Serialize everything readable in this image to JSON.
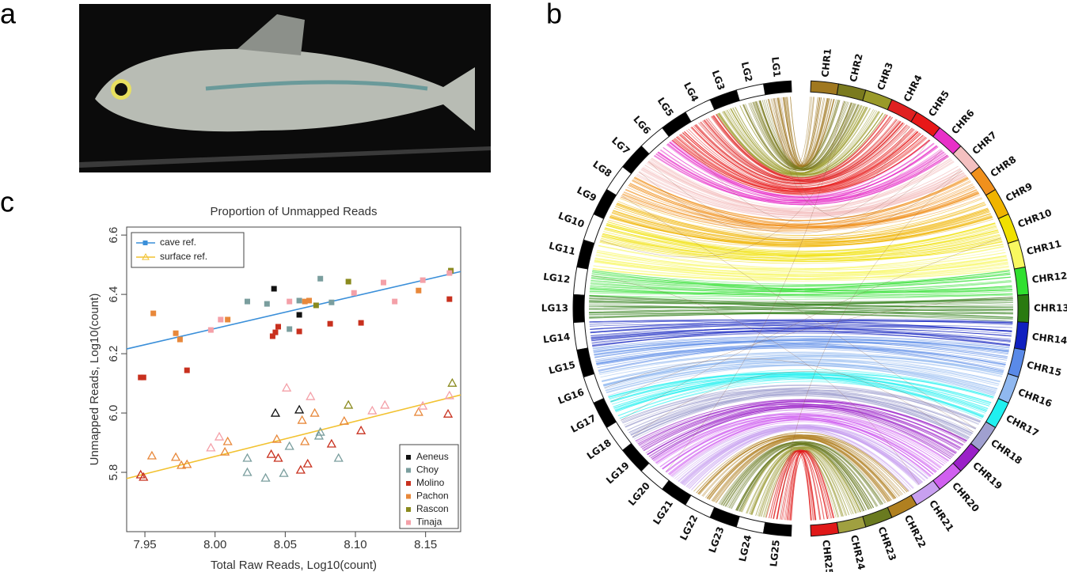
{
  "panel_labels": [
    "a",
    "b",
    "c"
  ],
  "chart_data": [
    {
      "type": "scatter",
      "title": "Proportion of Unmapped Reads",
      "x_label": "Total Raw Reads, Log10(count)",
      "y_label": "Unmapped Reads, Log10(count)",
      "xlim": [
        7.937,
        8.175
      ],
      "ylim": [
        5.6,
        6.627
      ],
      "xticks": [
        7.95,
        {
          "value": 8,
          "label": "8.00"
        },
        8.05,
        {
          "value": 8.1,
          "label": "8.10"
        },
        8.15
      ],
      "yticks": [
        5.8,
        {
          "value": 6,
          "label": "6.0"
        },
        6.2,
        6.4,
        6.6
      ],
      "references": [
        {
          "name": "cave ref.",
          "color": "#3a8fd9",
          "marker": "square",
          "x": [
            7.937,
            8.175
          ],
          "values": [
            6.216,
            6.477
          ]
        },
        {
          "name": "surface ref.",
          "color": "#f2c230",
          "marker": "triangle",
          "x": [
            7.937,
            8.175
          ],
          "values": [
            5.779,
            6.061
          ]
        }
      ],
      "populations": [
        {
          "name": "Aeneus",
          "color": "#111111",
          "cave_x": [
            8.042,
            8.06
          ],
          "cave_values": [
            6.419,
            6.331
          ],
          "surface_x": [
            8.043,
            8.06
          ],
          "surface_values": [
            6.0,
            6.011
          ]
        },
        {
          "name": "Choy",
          "color": "#7a9e9e",
          "cave_x": [
            8.023,
            8.037,
            8.06,
            8.075,
            8.053,
            8.083
          ],
          "cave_values": [
            6.376,
            6.368,
            6.379,
            6.453,
            6.283,
            6.373
          ],
          "surface_x": [
            8.023,
            8.023,
            8.036,
            8.049,
            8.053,
            8.075,
            8.074,
            8.088
          ],
          "surface_values": [
            5.848,
            5.8,
            5.781,
            5.797,
            5.888,
            5.936,
            5.923,
            5.848
          ]
        },
        {
          "name": "Molino",
          "color": "#c8301e",
          "cave_x": [
            7.947,
            7.949,
            7.98,
            8.041,
            8.043,
            8.045,
            8.06,
            8.082,
            8.104,
            8.167
          ],
          "cave_values": [
            6.12,
            6.12,
            6.144,
            6.259,
            6.272,
            6.291,
            6.275,
            6.301,
            6.304,
            6.384
          ],
          "surface_x": [
            7.947,
            7.949,
            8.04,
            8.045,
            8.061,
            8.066,
            8.083,
            8.104,
            8.166
          ],
          "surface_values": [
            5.792,
            5.784,
            5.861,
            5.848,
            5.808,
            5.829,
            5.896,
            5.941,
            5.997
          ]
        },
        {
          "name": "Pachon",
          "color": "#e8883a",
          "cave_x": [
            7.956,
            7.972,
            7.975,
            8.009,
            8.064,
            8.067,
            8.145
          ],
          "cave_values": [
            6.336,
            6.269,
            6.248,
            6.315,
            6.376,
            6.379,
            6.413
          ],
          "surface_x": [
            7.955,
            7.972,
            7.976,
            7.98,
            8.007,
            8.009,
            8.044,
            8.062,
            8.064,
            8.071,
            8.092,
            8.145
          ],
          "surface_values": [
            5.856,
            5.851,
            5.824,
            5.827,
            5.869,
            5.904,
            5.912,
            5.976,
            5.904,
            6.0,
            5.973,
            6.003
          ]
        },
        {
          "name": "Rascon",
          "color": "#8a8a1e",
          "cave_x": [
            8.072,
            8.095,
            8.168
          ],
          "cave_values": [
            6.363,
            6.443,
            6.48
          ],
          "surface_x": [
            8.095,
            8.169
          ],
          "surface_values": [
            6.027,
            6.101
          ]
        },
        {
          "name": "Tinaja",
          "color": "#f4a0a8",
          "cave_x": [
            7.997,
            8.004,
            8.053,
            8.099,
            8.12,
            8.128,
            8.148,
            8.167
          ],
          "cave_values": [
            6.28,
            6.315,
            6.376,
            6.405,
            6.44,
            6.376,
            6.448,
            6.472
          ],
          "surface_x": [
            7.997,
            8.003,
            8.051,
            8.068,
            8.112,
            8.121,
            8.148,
            8.167
          ],
          "surface_values": [
            5.883,
            5.92,
            6.085,
            6.056,
            6.008,
            6.027,
            6.024,
            6.059
          ]
        }
      ]
    },
    {
      "type": "circos",
      "left_labels": [
        "LG1",
        "LG2",
        "LG3",
        "LG4",
        "LG5",
        "LG6",
        "LG7",
        "LG8",
        "LG9",
        "LG10",
        "LG11",
        "LG12",
        "LG13",
        "LG14",
        "LG15",
        "LG16",
        "LG17",
        "LG18",
        "LG19",
        "LG20",
        "LG21",
        "LG22",
        "LG23",
        "LG24",
        "LG25"
      ],
      "right_labels": [
        "CHR1",
        "CHR2",
        "CHR3",
        "CHR4",
        "CHR5",
        "CHR6",
        "CHR7",
        "CHR8",
        "CHR9",
        "CHR10",
        "CHR11",
        "CHR12",
        "CHR13",
        "CHR14",
        "CHR15",
        "CHR16",
        "CHR17",
        "CHR18",
        "CHR19",
        "CHR20",
        "CHR21",
        "CHR22",
        "CHR23",
        "CHR24",
        "CHR25"
      ],
      "right_colors": [
        "#a07820",
        "#7a7a1e",
        "#9a9a2a",
        "#e02020",
        "#e81818",
        "#e830c8",
        "#f4c0c0",
        "#f0901c",
        "#f0b400",
        "#f0e000",
        "#f8f860",
        "#30e030",
        "#2a7a10",
        "#1020c0",
        "#5a8ae8",
        "#90b8f0",
        "#20f0f0",
        "#a0a0d0",
        "#9a20c8",
        "#d060f0",
        "#c8a0f0",
        "#b08020",
        "#6a7a20",
        "#a0a040",
        "#e01818"
      ]
    }
  ]
}
